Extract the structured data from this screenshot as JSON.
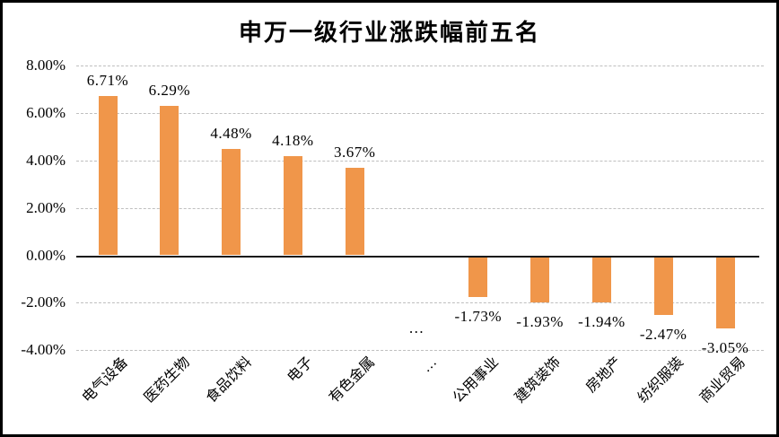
{
  "chart_data": {
    "type": "bar",
    "title": "申万一级行业涨跌幅前五名",
    "categories": [
      "电气设备",
      "医药生物",
      "食品饮料",
      "电子",
      "有色金属",
      "…",
      "公用事业",
      "建筑装饰",
      "房地产",
      "纺织服装",
      "商业贸易"
    ],
    "values": [
      6.71,
      6.29,
      4.48,
      4.18,
      3.67,
      null,
      -1.73,
      -1.93,
      -1.94,
      -2.47,
      -3.05
    ],
    "data_labels": [
      "6.71%",
      "6.29%",
      "4.48%",
      "4.18%",
      "3.67%",
      "…",
      "-1.73%",
      "-1.93%",
      "-1.94%",
      "-2.47%",
      "-3.05%"
    ],
    "xlabel": "",
    "ylabel": "",
    "ylim": [
      -4,
      8
    ],
    "ytick_labels": [
      "8.00%",
      "6.00%",
      "4.00%",
      "2.00%",
      "0.00%",
      "-2.00%",
      "-4.00%"
    ],
    "ytick_values": [
      8,
      6,
      4,
      2,
      0,
      -2,
      -4
    ],
    "grid": "horizontal-dashed",
    "legend": "none",
    "colors": {
      "bar": "#F0964A",
      "gridline": "#BFBFBF",
      "axis": "#1A1A1A",
      "text": "#000000",
      "frame_border": "#000000",
      "background": "#FFFFFF"
    }
  }
}
